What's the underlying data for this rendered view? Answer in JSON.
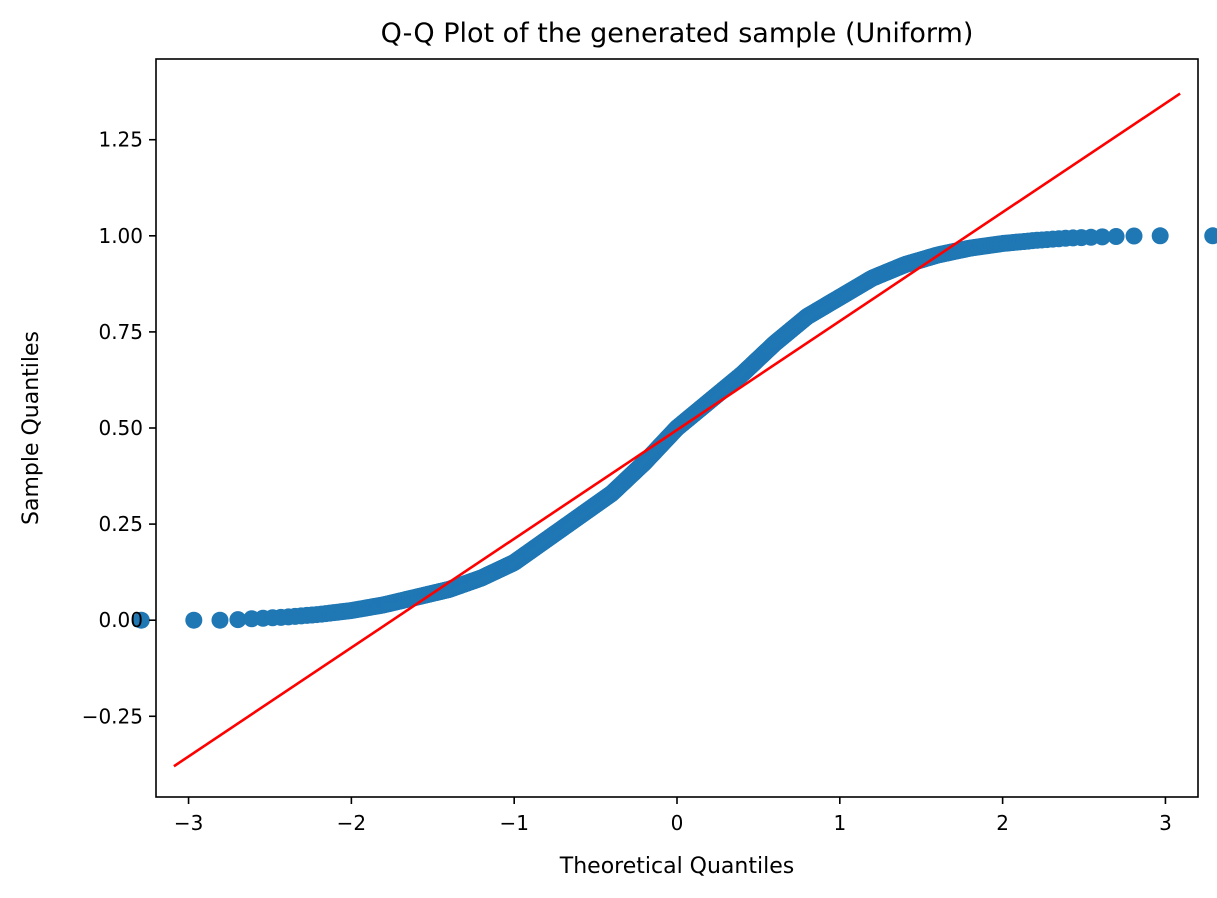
{
  "chart_data": {
    "type": "scatter",
    "title": "Q-Q Plot of the generated sample (Uniform)",
    "xlabel": "Theoretical Quantiles",
    "ylabel": "Sample Quantiles",
    "xlim": [
      -3.2,
      3.2
    ],
    "ylim": [
      -0.46,
      1.46
    ],
    "xticks": [
      -3,
      -2,
      -1,
      0,
      1,
      2,
      3
    ],
    "xtick_labels": [
      "−3",
      "−2",
      "−1",
      "0",
      "1",
      "2",
      "3"
    ],
    "yticks": [
      -0.25,
      0.0,
      0.25,
      0.5,
      0.75,
      1.0,
      1.25
    ],
    "ytick_labels": [
      "−0.25",
      "0.00",
      "0.25",
      "0.50",
      "0.75",
      "1.00",
      "1.25"
    ],
    "grid": false,
    "marker_color": "#1f77b4",
    "reference_line": {
      "color": "#ff0000",
      "x": [
        -3.09,
        3.09
      ],
      "y": [
        -0.38,
        1.37
      ]
    },
    "sample_quantile_curve": {
      "x": [
        -3.09,
        -2.87,
        -2.75,
        -2.6,
        -2.4,
        -2.2,
        -2.0,
        -1.8,
        -1.6,
        -1.4,
        -1.2,
        -1.0,
        -0.8,
        -0.6,
        -0.4,
        -0.2,
        0.0,
        0.2,
        0.4,
        0.6,
        0.8,
        1.0,
        1.2,
        1.4,
        1.6,
        1.8,
        2.0,
        2.2,
        2.4,
        2.6,
        2.75,
        2.87,
        3.09
      ],
      "y": [
        0.0,
        0.0,
        0.0,
        0.004,
        0.008,
        0.015,
        0.025,
        0.04,
        0.06,
        0.08,
        0.11,
        0.15,
        0.21,
        0.27,
        0.33,
        0.41,
        0.5,
        0.57,
        0.64,
        0.72,
        0.79,
        0.84,
        0.89,
        0.925,
        0.95,
        0.968,
        0.98,
        0.988,
        0.994,
        0.997,
        0.999,
        1.0,
        1.0
      ]
    },
    "n_points": 1000
  }
}
